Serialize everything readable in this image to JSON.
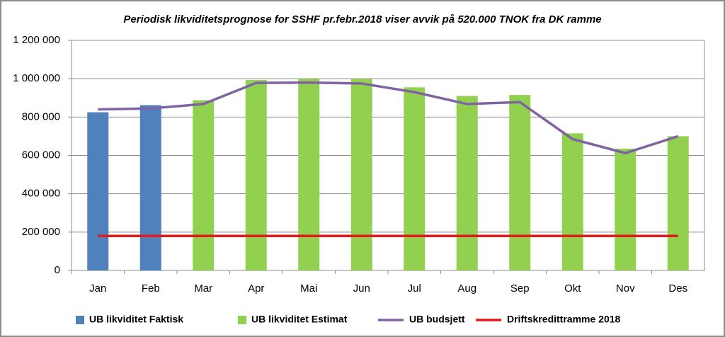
{
  "chart_data": {
    "type": "bar",
    "title": "Periodisk likviditetsprognose for SSHF pr.febr.2018 viser avvik på 520.000 TNOK fra DK ramme",
    "categories": [
      "Jan",
      "Feb",
      "Mar",
      "Apr",
      "Mai",
      "Jun",
      "Jul",
      "Aug",
      "Sep",
      "Okt",
      "Nov",
      "Des"
    ],
    "series": [
      {
        "name": "UB likviditet Faktisk",
        "type": "bar",
        "color": "#4f81bd",
        "values": [
          825000,
          862000,
          null,
          null,
          null,
          null,
          null,
          null,
          null,
          null,
          null,
          null
        ]
      },
      {
        "name": "UB likviditet Estimat",
        "type": "bar",
        "color": "#92d050",
        "values": [
          null,
          null,
          888000,
          993000,
          1000000,
          1000000,
          955000,
          910000,
          915000,
          715000,
          635000,
          700000
        ]
      },
      {
        "name": "UB budsjett",
        "type": "line",
        "color": "#8064a2",
        "values": [
          840000,
          845000,
          868000,
          978000,
          980000,
          975000,
          930000,
          868000,
          878000,
          685000,
          612000,
          700000
        ]
      },
      {
        "name": "Driftskredittramme 2018",
        "type": "line",
        "color": "#e31a1c",
        "values": [
          180000,
          180000,
          180000,
          180000,
          180000,
          180000,
          180000,
          180000,
          180000,
          180000,
          180000,
          180000
        ]
      }
    ],
    "ylim": [
      0,
      1200000
    ],
    "yticks": [
      0,
      {
        "value": 200000,
        "label": "200 000"
      },
      {
        "value": 400000,
        "label": "400 000"
      },
      {
        "value": 600000,
        "label": "600 000"
      },
      {
        "value": 800000,
        "label": "800 000"
      },
      {
        "value": 1000000,
        "label": "1 000 000"
      },
      {
        "value": 1200000,
        "label": "1 200 000"
      }
    ],
    "grid": true,
    "legend": "bottom"
  }
}
